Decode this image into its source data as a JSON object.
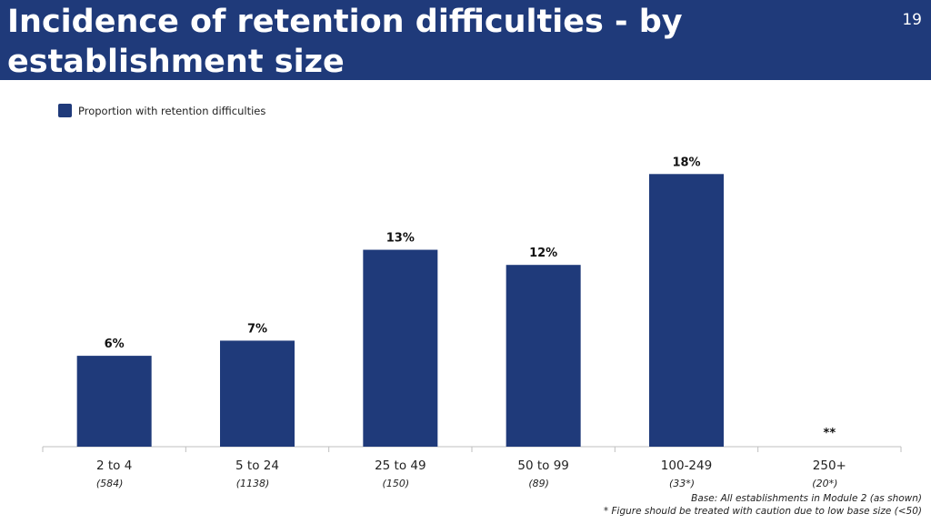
{
  "header": {
    "title": "Incidence of retention difficulties - by establishment size",
    "page_number": "19"
  },
  "colors": {
    "header_bg": "#1f3a7a",
    "bar": "#1f3a7a"
  },
  "legend": {
    "label": "Proportion with retention difficulties"
  },
  "chart_data": {
    "type": "bar",
    "title": "",
    "xlabel": "",
    "ylabel": "",
    "ylim": [
      0,
      18
    ],
    "series": [
      {
        "name": "Proportion with retention difficulties",
        "values": [
          6,
          7,
          13,
          12,
          18,
          null
        ]
      }
    ],
    "categories": [
      "2 to 4",
      "5 to 24",
      "25 to 49",
      "50 to 99",
      "100-249",
      "250+"
    ],
    "base_sizes": [
      "(584)",
      "(1138)",
      "(150)",
      "(89)",
      "(33*)",
      "(20*)"
    ],
    "data_labels": [
      "6%",
      "7%",
      "13%",
      "12%",
      "18%",
      "**"
    ]
  },
  "footnotes": {
    "base": "Base: All establishments in Module 2 (as shown)",
    "caution": "* Figure should be treated with caution due to low base size (<50)"
  }
}
